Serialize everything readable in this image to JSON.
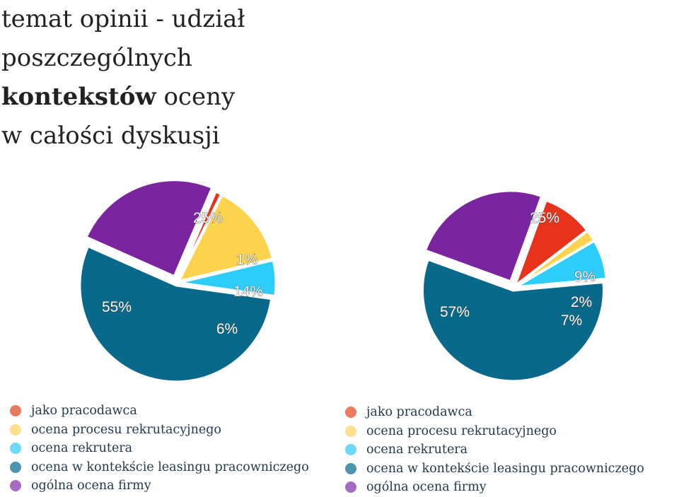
{
  "title": {
    "line1": "temat opinii - udział",
    "line2": "poszczególnych",
    "line3_bold": "kontekstów",
    "line3_rest": " oceny",
    "line4": "w całości dyskusji"
  },
  "colors": {
    "jako_pracodawca": "#e8331c",
    "legend_jako_pracodawca": "#ea7a62",
    "ocena_procesu": "#fdd24c",
    "legend_ocena_procesu": "#fde08c",
    "ocena_rekrutera": "#2dcdfa",
    "legend_ocena_rekrutera": "#6ed9fb",
    "leasing": "#09698a",
    "legend_leasing": "#4c96ad",
    "ogolna": "#7b249f",
    "legend_ogolna": "#a46dc1"
  },
  "chart_data": [
    {
      "type": "pie",
      "slices": [
        {
          "label": "ogólna ocena firmy",
          "value": 25,
          "value_label": "25%"
        },
        {
          "label": "jako pracodawca",
          "value": 1,
          "value_label": "1%"
        },
        {
          "label": "ocena procesu rekrutacyjnego",
          "value": 14,
          "value_label": "14%"
        },
        {
          "label": "ocena rekrutera",
          "value": 6,
          "value_label": "6%"
        },
        {
          "label": "ocena w kontekście leasingu pracowniczego",
          "value": 55,
          "value_label": "55%"
        }
      ]
    },
    {
      "type": "pie",
      "slices": [
        {
          "label": "ogólna ocena firmy",
          "value": 25,
          "value_label": "25%"
        },
        {
          "label": "jako pracodawca",
          "value": 9,
          "value_label": "9%"
        },
        {
          "label": "ocena procesu rekrutacyjnego",
          "value": 2,
          "value_label": "2%"
        },
        {
          "label": "ocena rekrutera",
          "value": 7,
          "value_label": "7%"
        },
        {
          "label": "ocena w kontekście leasingu pracowniczego",
          "value": 57,
          "value_label": "57%"
        }
      ]
    }
  ],
  "legend_left": [
    {
      "label": "jako pracodawca",
      "color": "#ea7a62"
    },
    {
      "label": "ocena procesu rekrutacyjnego",
      "color": "#fde08c"
    },
    {
      "label": "ocena rekrutera",
      "color": "#6ed9fb"
    },
    {
      "label": "ocena w kontekście leasingu pracowniczego",
      "color": "#4c96ad"
    },
    {
      "label": "ogólna ocena firmy",
      "color": "#a46dc1"
    }
  ],
  "legend_right": [
    {
      "label": "jako pracodawca",
      "color": "#ea7a62"
    },
    {
      "label": "ocena procesu rekrutacyjnego",
      "color": "#fde08c"
    },
    {
      "label": "ocena rekrutera",
      "color": "#6ed9fb"
    },
    {
      "label": "ocena w kontekście leasingu pracowniczego",
      "color": "#4c96ad"
    },
    {
      "label": "ogólna ocena firmy",
      "color": "#a46dc1"
    }
  ]
}
